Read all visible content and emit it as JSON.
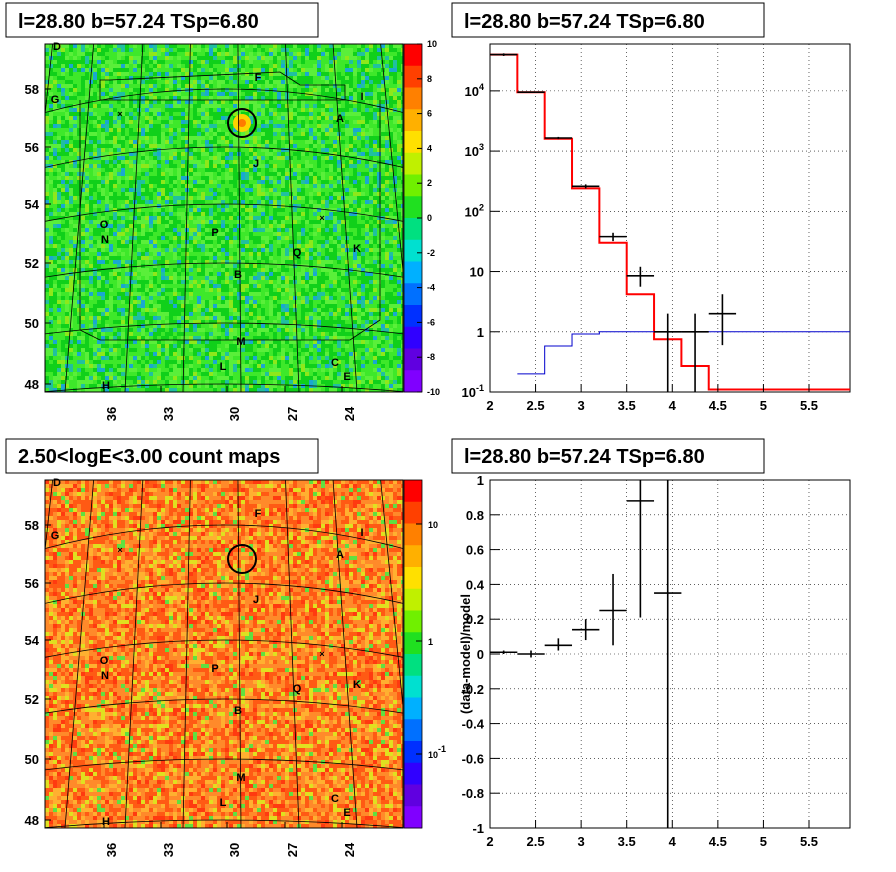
{
  "panels": {
    "tl": {
      "title": "l=28.80 b=57.24 TSp=6.80"
    },
    "tr": {
      "title": "l=28.80 b=57.24 TSp=6.80"
    },
    "bl": {
      "title": "2.50<logE<3.00 count maps"
    },
    "br": {
      "title": "l=28.80 b=57.24 TSp=6.80"
    }
  },
  "chart_data": [
    {
      "type": "heatmap",
      "panel": "tl",
      "title": "l=28.80 b=57.24 TSp=6.80",
      "x_ticks": [
        "36",
        "33",
        "30",
        "27",
        "24"
      ],
      "y_ticks": [
        "48",
        "50",
        "52",
        "54",
        "56",
        "58"
      ],
      "colorbar_ticks": [
        "10",
        "8",
        "6",
        "4",
        "2",
        "0",
        "-2",
        "-4",
        "-6",
        "-8",
        "-10"
      ],
      "colorbar_range": [
        -10,
        10
      ],
      "source_labels": [
        "D",
        "F",
        "G",
        "I",
        "A",
        "J",
        "O",
        "N",
        "P",
        "Q",
        "K",
        "B",
        "M",
        "L",
        "C",
        "E",
        "H"
      ],
      "dominant_color": "#22dd22"
    },
    {
      "type": "line",
      "panel": "tr",
      "title": "l=28.80 b=57.24 TSp=6.80",
      "x_ticks": [
        "2",
        "2.5",
        "3",
        "3.5",
        "4",
        "4.5",
        "5",
        "5.5"
      ],
      "xlim": [
        2,
        5.95
      ],
      "yscale": "log",
      "y_ticks": [
        "10^-1",
        "1",
        "10",
        "10^2",
        "10^3",
        "10^4"
      ],
      "ylim": [
        0.1,
        60000
      ],
      "grid": true,
      "series": [
        {
          "color": "#ff0000",
          "type": "step",
          "edges": [
            2,
            2.3,
            2.6,
            2.9,
            3.2,
            3.5,
            3.8,
            4.1,
            4.4,
            5.95
          ],
          "values": [
            40000,
            9500,
            1600,
            240,
            30,
            4.2,
            0.75,
            0.27,
            0.11
          ]
        },
        {
          "color": "#0000cc",
          "type": "step",
          "edges": [
            2.3,
            2.6,
            2.9,
            3.2,
            3.5,
            5.95
          ],
          "values": [
            0.2,
            0.58,
            0.92,
            1.0,
            1.0
          ]
        },
        {
          "color": "#000000",
          "type": "errorbar",
          "points": [
            {
              "x": 2.15,
              "y": 40000,
              "xerr": 0.15,
              "ylo": 38000,
              "yhi": 42000
            },
            {
              "x": 2.45,
              "y": 9500,
              "xerr": 0.15,
              "ylo": 9300,
              "yhi": 9700
            },
            {
              "x": 2.75,
              "y": 1650,
              "xerr": 0.15,
              "ylo": 1580,
              "yhi": 1720
            },
            {
              "x": 3.05,
              "y": 260,
              "xerr": 0.15,
              "ylo": 240,
              "yhi": 280
            },
            {
              "x": 3.35,
              "y": 38,
              "xerr": 0.15,
              "ylo": 32,
              "yhi": 44
            },
            {
              "x": 3.65,
              "y": 8.5,
              "xerr": 0.15,
              "ylo": 5.6,
              "yhi": 12
            },
            {
              "x": 3.95,
              "y": 1.0,
              "xerr": 0.15,
              "ylo": 0.1,
              "yhi": 2.0
            },
            {
              "x": 4.25,
              "y": 1.0,
              "xerr": 0.15,
              "ylo": 0.1,
              "yhi": 2.0
            },
            {
              "x": 4.55,
              "y": 2.0,
              "xerr": 0.15,
              "ylo": 0.6,
              "yhi": 4.2
            }
          ]
        }
      ]
    },
    {
      "type": "heatmap",
      "panel": "bl",
      "title": "2.50<logE<3.00 count maps",
      "x_ticks": [
        "36",
        "33",
        "30",
        "27",
        "24"
      ],
      "y_ticks": [
        "48",
        "50",
        "52",
        "54",
        "56",
        "58"
      ],
      "colorbar_ticks": [
        "10",
        "1",
        "10^-1"
      ],
      "colorbar_scale": "log",
      "source_labels": [
        "D",
        "F",
        "G",
        "I",
        "A",
        "J",
        "O",
        "N",
        "P",
        "Q",
        "K",
        "B",
        "M",
        "L",
        "C",
        "E",
        "H"
      ],
      "dominant_color": "#ff6a1a"
    },
    {
      "type": "scatter",
      "panel": "br",
      "title": "l=28.80 b=57.24 TSp=6.80",
      "ylabel": "(data-model)/model",
      "x_ticks": [
        "2",
        "2.5",
        "3",
        "3.5",
        "4",
        "4.5",
        "5",
        "5.5"
      ],
      "xlim": [
        2,
        5.95
      ],
      "y_ticks": [
        "-1",
        "-0.8",
        "-0.6",
        "-0.4",
        "-0.2",
        "0",
        "0.2",
        "0.4",
        "0.6",
        "0.8",
        "1"
      ],
      "ylim": [
        -1,
        1
      ],
      "grid": true,
      "points": [
        {
          "x": 2.15,
          "y": 0.01,
          "xerr": 0.15,
          "ylo": 0.0,
          "yhi": 0.02
        },
        {
          "x": 2.45,
          "y": 0.0,
          "xerr": 0.15,
          "ylo": -0.02,
          "yhi": 0.02
        },
        {
          "x": 2.75,
          "y": 0.05,
          "xerr": 0.15,
          "ylo": 0.02,
          "yhi": 0.09
        },
        {
          "x": 3.05,
          "y": 0.14,
          "xerr": 0.15,
          "ylo": 0.08,
          "yhi": 0.2
        },
        {
          "x": 3.35,
          "y": 0.25,
          "xerr": 0.15,
          "ylo": 0.05,
          "yhi": 0.46
        },
        {
          "x": 3.65,
          "y": 0.88,
          "xerr": 0.15,
          "ylo": 0.21,
          "yhi": 1.0
        },
        {
          "x": 3.95,
          "y": 0.35,
          "xerr": 0.15,
          "ylo": -1.0,
          "yhi": 1.0
        }
      ]
    }
  ]
}
